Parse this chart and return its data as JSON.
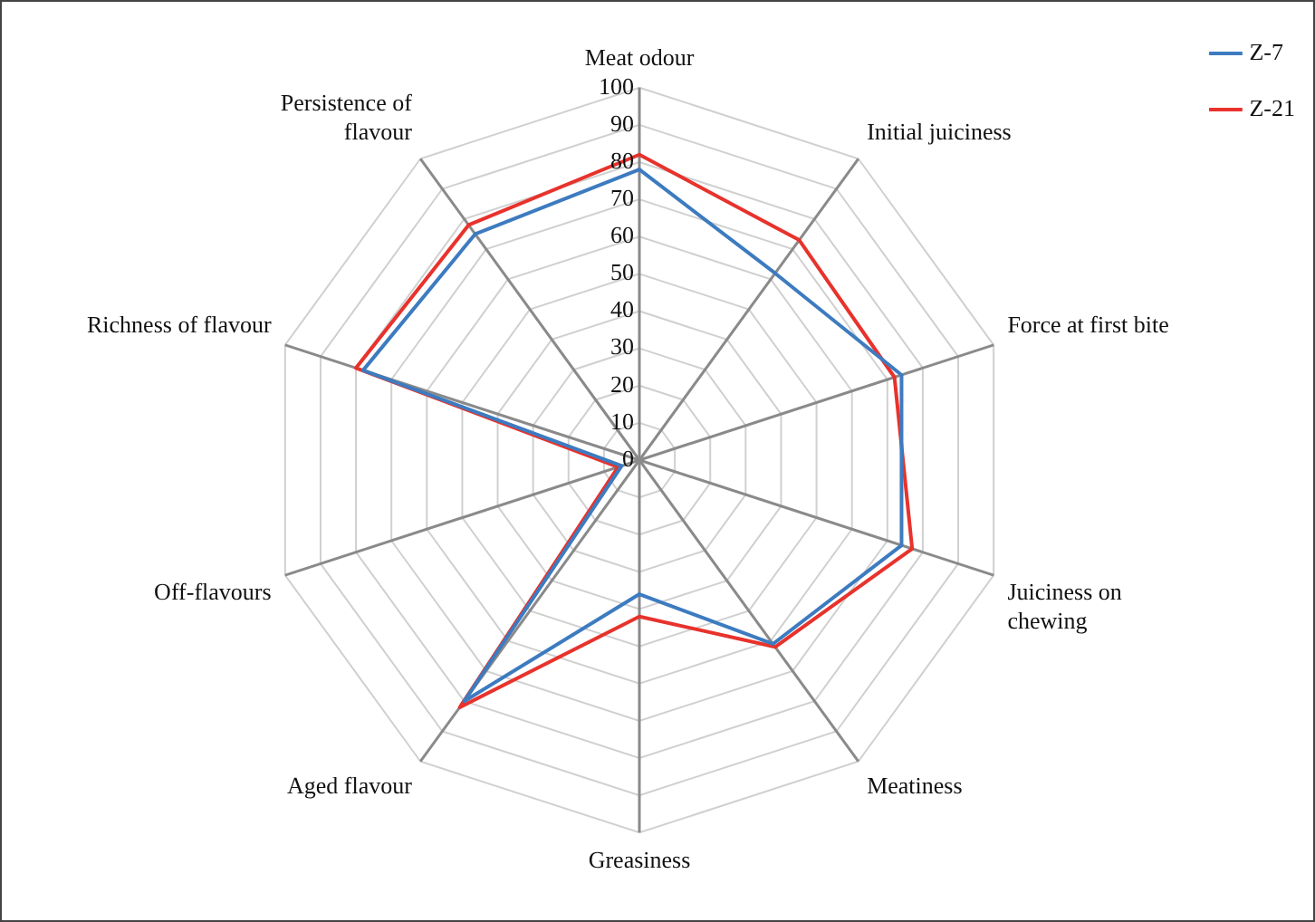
{
  "chart_data": {
    "type": "radar",
    "categories": [
      "Meat odour",
      "Initial juiciness",
      "Force at first bite",
      "Juiciness on chewing",
      "Meatiness",
      "Greasiness",
      "Aged flavour",
      "Off-flavours",
      "Richness of flavour",
      "Persistence of flavour"
    ],
    "series": [
      {
        "name": "Z-7",
        "color": "#3d7bc0",
        "values": [
          78,
          62,
          74,
          74,
          61,
          36,
          80,
          5,
          78,
          75
        ]
      },
      {
        "name": "Z-21",
        "color": "#e8322c",
        "values": [
          82,
          73,
          72,
          77,
          62,
          42,
          82,
          6,
          80,
          78
        ]
      }
    ],
    "ylim": [
      0,
      100
    ],
    "yticks": [
      0,
      10,
      20,
      30,
      40,
      50,
      60,
      70,
      80,
      90,
      100
    ],
    "grid": true,
    "legend": "top right",
    "marker": "none",
    "line_style": "solid"
  }
}
